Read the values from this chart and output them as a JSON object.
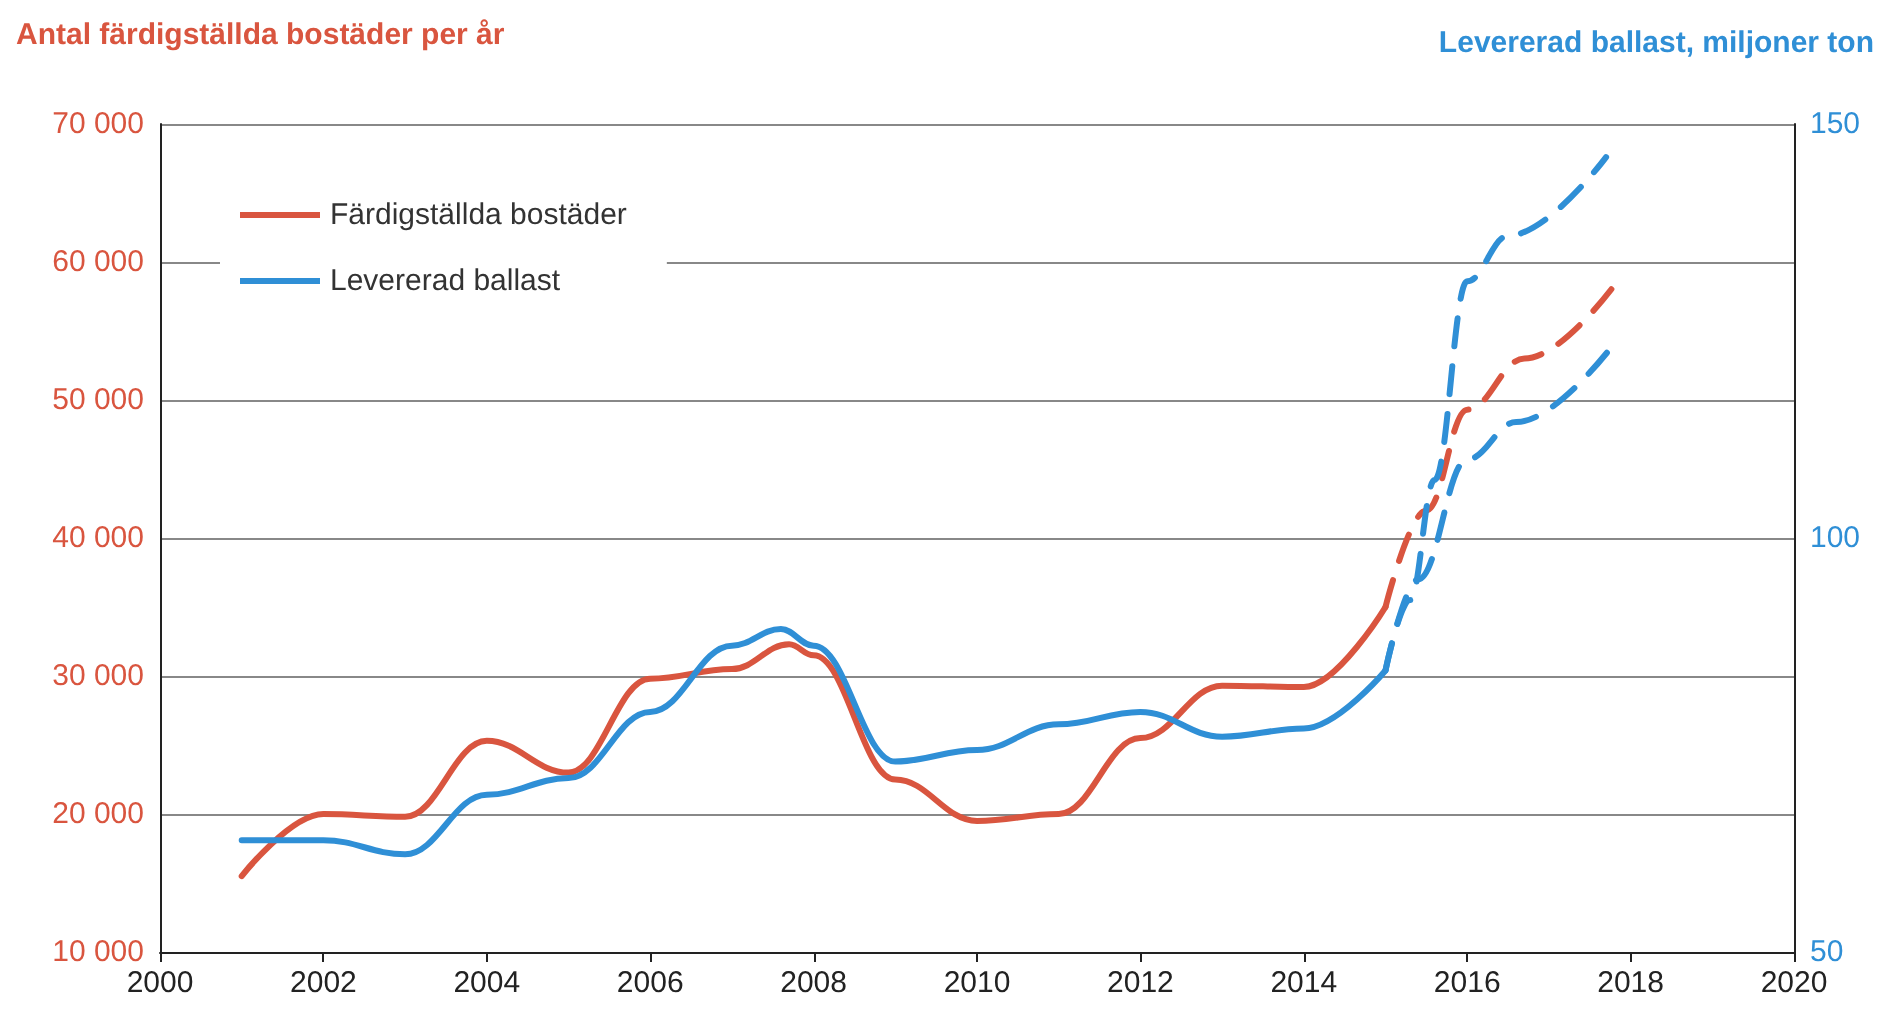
{
  "chart_data": {
    "type": "line",
    "ylabel": "Antal färdigställda bostäder per år",
    "y2label": "Levererad ballast, miljoner ton",
    "series": [
      {
        "name": "Färdigställda bostäder",
        "color": "#d9553f",
        "line_style": "solid",
        "x": [
          2001,
          2002,
          2003,
          2004,
          2005,
          2006,
          2007,
          2007.7,
          2008,
          2009,
          2010,
          2011,
          2012,
          2013,
          2014,
          2015
        ],
        "values": [
          15500,
          20000,
          19800,
          25300,
          23000,
          29800,
          30500,
          32300,
          31500,
          22500,
          19500,
          20000,
          25500,
          29300,
          29200,
          35000
        ]
      },
      {
        "color": "#d9553f",
        "line_style": "dashed",
        "x": [
          2015,
          2015.5,
          2016,
          2016.7,
          2017.8
        ],
        "values": [
          35000,
          42000,
          49300,
          53000,
          58300
        ]
      },
      {
        "name": "Levererad ballast",
        "color": "#2f8fd6",
        "axis": "y2",
        "line_style": "solid",
        "x": [
          2001,
          2002,
          2003,
          2004,
          2005,
          2006,
          2007,
          2007.6,
          2008,
          2009,
          2010,
          2011,
          2012,
          2013,
          2014,
          2015
        ],
        "values": [
          63.5,
          63.5,
          61.8,
          69,
          71,
          79,
          87,
          89,
          87,
          73,
          74.4,
          77.5,
          79,
          76,
          77,
          84
        ]
      },
      {
        "color": "#2f8fd6",
        "axis": "y2",
        "line_style": "dashed",
        "x": [
          2015,
          2015.3,
          2015.6,
          2016,
          2016.5,
          2017.7
        ],
        "values": [
          84,
          92.5,
          107,
          131,
          136.5,
          146
        ]
      },
      {
        "color": "#2f8fd6",
        "axis": "y2",
        "line_style": "dashed",
        "x": [
          2015,
          2015.4,
          2016,
          2016.6,
          2017.8
        ],
        "values": [
          84,
          95,
          109.5,
          114,
          123.5
        ]
      }
    ],
    "xlim": [
      2000,
      2020
    ],
    "xticks": [
      2000,
      2002,
      2004,
      2006,
      2008,
      2010,
      2012,
      2014,
      2016,
      2018,
      2020
    ],
    "ylim": [
      10000,
      70000
    ],
    "yticks": [
      {
        "value": 10000,
        "label": "10 000"
      },
      {
        "value": 20000,
        "label": "20 000"
      },
      {
        "value": 30000,
        "label": "30 000"
      },
      {
        "value": 40000,
        "label": "40 000"
      },
      {
        "value": 50000,
        "label": "50 000"
      },
      {
        "value": 60000,
        "label": "60 000"
      },
      {
        "value": 70000,
        "label": "70 000"
      }
    ],
    "y2lim": [
      50,
      150
    ],
    "y2ticks": [
      50,
      100,
      150
    ],
    "grid": "y",
    "legend": "top left",
    "marker": "none"
  }
}
